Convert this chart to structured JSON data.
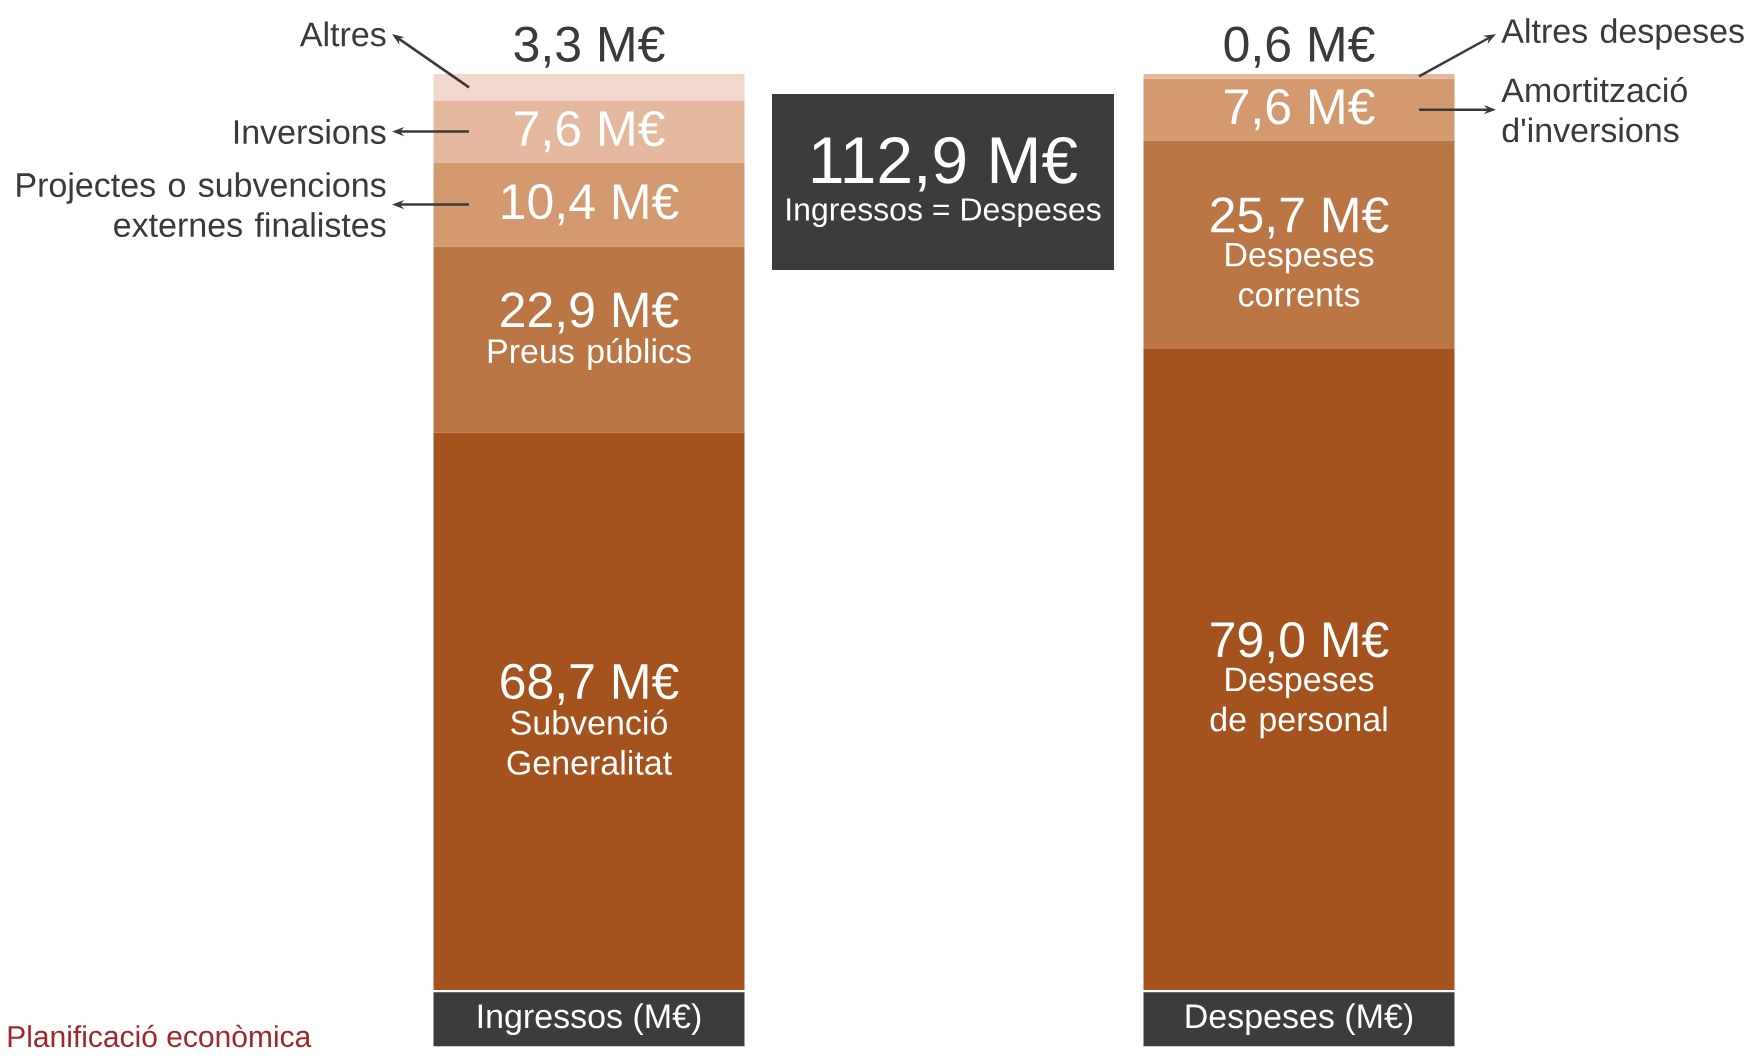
{
  "chart_data": {
    "type": "bar",
    "stacked": true,
    "categories": [
      "Ingressos (M€)",
      "Despeses (M€)"
    ],
    "series": [
      {
        "color": "#a5531e",
        "values": [
          68.7,
          79.0
        ],
        "value_labels": [
          "68,7 M€",
          "79,0 M€"
        ]
      },
      {
        "color": "#bb7646",
        "values": [
          22.9,
          25.7
        ],
        "value_labels": [
          "22,9 M€",
          "25,7 M€"
        ]
      },
      {
        "color": "#d3996f",
        "values": [
          10.4,
          7.6
        ],
        "value_labels": [
          "10,4 M€",
          "7,6 M€"
        ]
      },
      {
        "color": "#e3b89c",
        "values": [
          7.6,
          0.6
        ],
        "value_labels": [
          "7,6 M€",
          "0,6 M€"
        ]
      },
      {
        "color": "#f2d8cc",
        "values": [
          3.3,
          null
        ],
        "value_labels": [
          "3,3 M€",
          null
        ]
      }
    ],
    "annotations": [
      "Subvenció Generalitat",
      "Preus públics",
      "Projectes o subvencions externes finalistes",
      "Inversions",
      "Altres",
      "Despeses de personal",
      "Despeses corrents",
      "Amortització d'inversions",
      "Altres despeses",
      "112,9 M€",
      "Ingressos = Despeses",
      "Planificació econòmica"
    ]
  }
}
